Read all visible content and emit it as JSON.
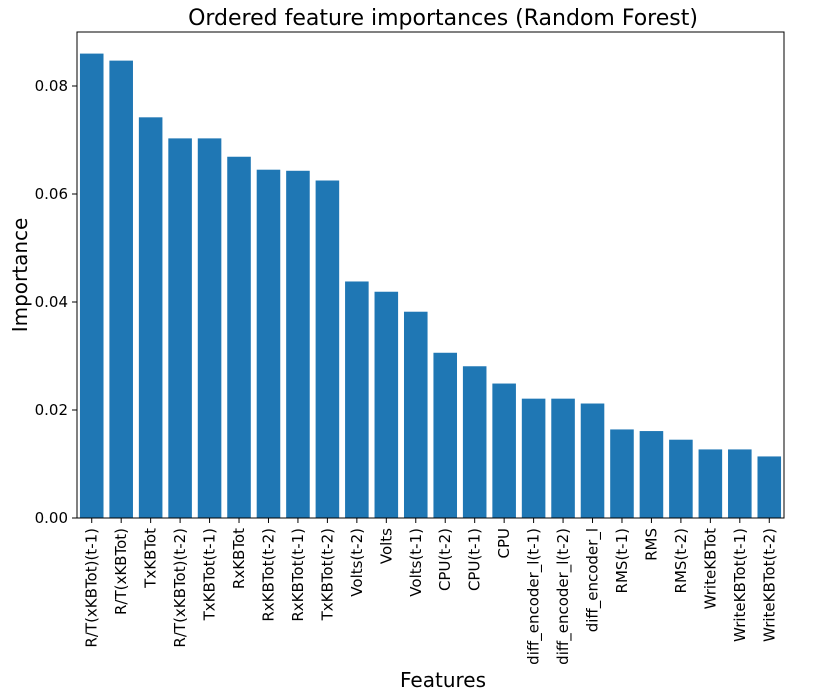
{
  "chart_data": {
    "type": "bar",
    "title": "Ordered feature importances (Random Forest)",
    "xlabel": "Features",
    "ylabel": "Importance",
    "categories": [
      "R/T(xKBTot)(t-1)",
      "R/T(xKBTot)",
      "TxKBTot",
      "R/T(xKBTot)(t-2)",
      "TxKBTot(t-1)",
      "RxKBTot",
      "RxKBTot(t-2)",
      "RxKBTot(t-1)",
      "TxKBTot(t-2)",
      "Volts(t-2)",
      "Volts",
      "Volts(t-1)",
      "CPU(t-2)",
      "CPU(t-1)",
      "CPU",
      "diff_encoder_l(t-1)",
      "diff_encoder_l(t-2)",
      "diff_encoder_l",
      "RMS(t-1)",
      "RMS",
      "RMS(t-2)",
      "WriteKBTot",
      "WriteKBTot(t-1)",
      "WriteKBTot(t-2)"
    ],
    "values": [
      0.086,
      0.0847,
      0.0742,
      0.0703,
      0.0703,
      0.0669,
      0.0645,
      0.0643,
      0.0625,
      0.0438,
      0.0419,
      0.0382,
      0.0306,
      0.0281,
      0.0249,
      0.0221,
      0.0221,
      0.0212,
      0.0164,
      0.0161,
      0.0145,
      0.0127,
      0.0127,
      0.0114
    ],
    "ylim": [
      0,
      0.09
    ],
    "yticks": [
      0.0,
      0.02,
      0.04,
      0.06,
      0.08
    ],
    "ytick_labels": [
      "0.00",
      "0.02",
      "0.04",
      "0.06",
      "0.08"
    ],
    "grid": false,
    "legend": "none",
    "bar_color": "#1f77b4"
  }
}
